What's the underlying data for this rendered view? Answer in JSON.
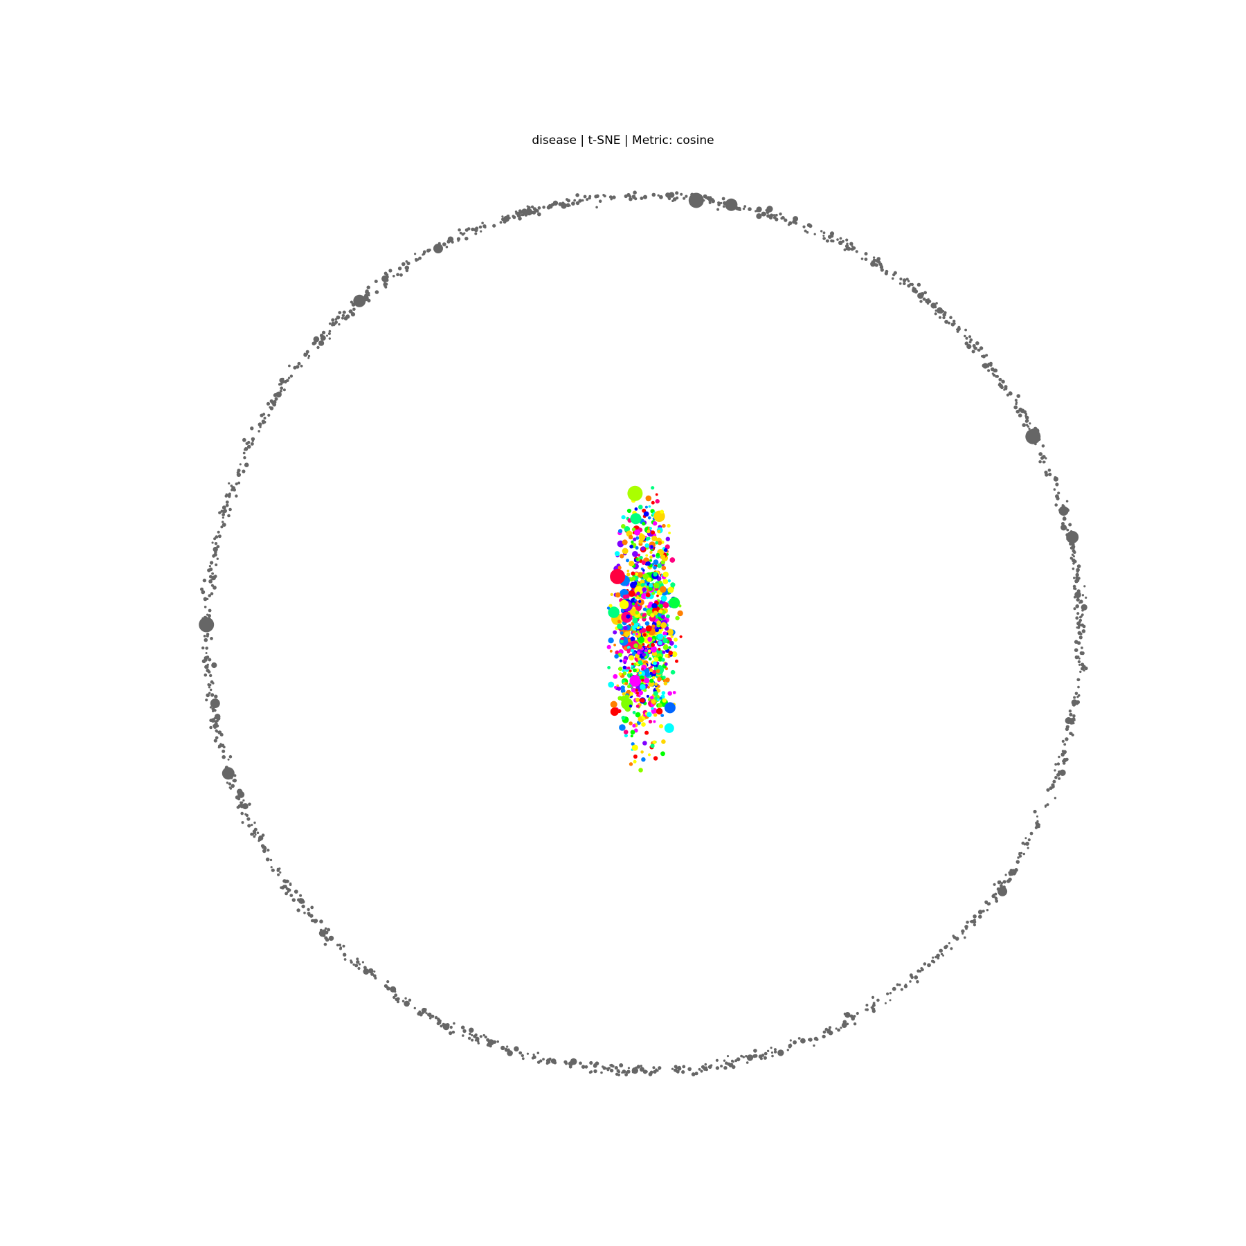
{
  "chart_data": {
    "type": "scatter",
    "title": "disease | t-SNE | Metric: cosine",
    "xlabel": "",
    "ylabel": "",
    "axes_visible": false,
    "grid": false,
    "legend": "none",
    "xlim": [
      -1.1,
      1.1
    ],
    "ylim": [
      -1.1,
      1.1
    ],
    "series": [
      {
        "role": "outer-ring",
        "color": "#666666",
        "shape": "circle",
        "center": [
          0,
          0
        ],
        "radius": 1.0,
        "point_count": 1400
      },
      {
        "role": "central-cluster",
        "colors": [
          "#ff0000",
          "#ff7f00",
          "#ffd700",
          "#ffff00",
          "#7fff00",
          "#00ff00",
          "#00ff7f",
          "#00ffff",
          "#007fff",
          "#0000ff",
          "#7f00ff",
          "#ff00ff",
          "#ff007f"
        ],
        "center": [
          0,
          0.05
        ],
        "x_extent": [
          -0.085,
          0.085
        ],
        "y_extent": [
          -0.33,
          0.35
        ],
        "point_count": 900
      }
    ],
    "highlighted_points": [
      {
        "series": "outer-ring",
        "x": 0.96,
        "y": 0.28
      },
      {
        "series": "outer-ring",
        "x": 0.98,
        "y": 0.22
      },
      {
        "series": "outer-ring",
        "x": 0.89,
        "y": 0.45
      },
      {
        "series": "outer-ring",
        "x": 0.82,
        "y": -0.59
      },
      {
        "series": "outer-ring",
        "x": 0.2,
        "y": 0.98
      },
      {
        "series": "outer-ring",
        "x": 0.12,
        "y": 0.99
      },
      {
        "series": "outer-ring",
        "x": -0.47,
        "y": 0.88
      },
      {
        "series": "outer-ring",
        "x": -0.65,
        "y": 0.76
      },
      {
        "series": "outer-ring",
        "x": -1.0,
        "y": 0.02
      },
      {
        "series": "outer-ring",
        "x": -0.98,
        "y": -0.16
      },
      {
        "series": "outer-ring",
        "x": -0.95,
        "y": -0.32
      },
      {
        "series": "central-cluster",
        "x": -0.06,
        "y": 0.13,
        "color": "#ff0040"
      },
      {
        "series": "central-cluster",
        "x": 0.06,
        "y": -0.17,
        "color": "#0066ff"
      },
      {
        "series": "central-cluster",
        "x": -0.02,
        "y": 0.32,
        "color": "#aaff00"
      },
      {
        "series": "central-cluster",
        "x": 0.07,
        "y": 0.07,
        "color": "#00ff40"
      }
    ]
  }
}
